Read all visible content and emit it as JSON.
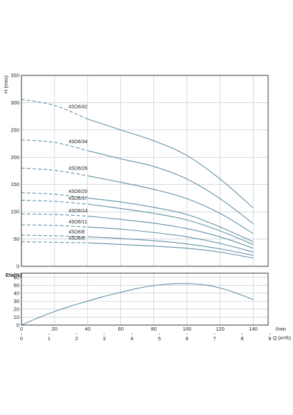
{
  "colors": {
    "curve": "#5b8fa3",
    "grid": "#b8c2c8",
    "frame": "#333333"
  },
  "chart_data": [
    {
      "type": "line",
      "title": "",
      "ylabel": "H (mss)",
      "xlabel": "l/min",
      "x_ticks": [
        0,
        20,
        40,
        60,
        80,
        100,
        120,
        140
      ],
      "y_ticks": [
        0,
        50,
        100,
        150,
        200,
        250,
        300,
        350
      ],
      "xlim": [
        0,
        149
      ],
      "ylim": [
        0,
        350
      ],
      "grid": true,
      "dashed_until_x": 40,
      "series": [
        {
          "name": "4SD6/42",
          "x": [
            0,
            20,
            40,
            60,
            80,
            100,
            120,
            140
          ],
          "y": [
            306,
            295,
            270,
            250,
            230,
            203,
            160,
            107
          ]
        },
        {
          "name": "4SD6/34",
          "x": [
            0,
            20,
            40,
            60,
            80,
            100,
            120,
            140
          ],
          "y": [
            232,
            227,
            212,
            197,
            183,
            160,
            124,
            78
          ]
        },
        {
          "name": "4SD6/26",
          "x": [
            0,
            20,
            40,
            60,
            80,
            100,
            120,
            140
          ],
          "y": [
            180,
            176,
            166,
            154,
            141,
            124,
            97,
            60
          ]
        },
        {
          "name": "4SD6/20",
          "x": [
            0,
            20,
            40,
            60,
            80,
            100,
            120,
            140
          ],
          "y": [
            135,
            132,
            125,
            118,
            108,
            95,
            72,
            45
          ]
        },
        {
          "name": "4SD6/17",
          "x": [
            0,
            20,
            40,
            60,
            80,
            100,
            120,
            140
          ],
          "y": [
            121,
            119,
            114,
            106,
            97,
            85,
            65,
            40
          ]
        },
        {
          "name": "4SD6/14",
          "x": [
            0,
            20,
            40,
            60,
            80,
            100,
            120,
            140
          ],
          "y": [
            96,
            95,
            92,
            86,
            79,
            69,
            54,
            33
          ]
        },
        {
          "name": "4SD6/11",
          "x": [
            0,
            20,
            40,
            60,
            80,
            100,
            120,
            140
          ],
          "y": [
            76,
            75,
            72,
            68,
            62,
            54,
            42,
            26
          ]
        },
        {
          "name": "4SD6/8",
          "x": [
            0,
            20,
            40,
            60,
            80,
            100,
            120,
            140
          ],
          "y": [
            57,
            56,
            54,
            51,
            47,
            41,
            32,
            20
          ]
        },
        {
          "name": "4SD6/6",
          "x": [
            0,
            20,
            40,
            60,
            80,
            100,
            120,
            140
          ],
          "y": [
            45,
            44,
            43,
            40,
            37,
            33,
            26,
            15
          ]
        }
      ]
    },
    {
      "type": "line",
      "title": "",
      "ylabel": "Eta(%)",
      "xlabel": "l/min",
      "x_ticks": [
        0,
        20,
        40,
        60,
        80,
        100,
        120,
        140
      ],
      "y_ticks": [
        0,
        10,
        20,
        30,
        40,
        50,
        60
      ],
      "xlim": [
        0,
        149
      ],
      "ylim": [
        0,
        65
      ],
      "grid": true,
      "series": [
        {
          "name": "",
          "x": [
            0,
            10,
            20,
            30,
            40,
            50,
            60,
            70,
            80,
            90,
            100,
            110,
            120,
            130,
            140
          ],
          "y": [
            0,
            9,
            17,
            24,
            30,
            36,
            41,
            46,
            49.5,
            51.5,
            52,
            50.5,
            46.5,
            40,
            32
          ]
        }
      ]
    }
  ],
  "secondary_axis": {
    "label": "Q (m³/h)",
    "ticks": [
      0,
      1,
      2,
      3,
      4,
      5,
      6,
      7,
      8,
      9
    ]
  }
}
